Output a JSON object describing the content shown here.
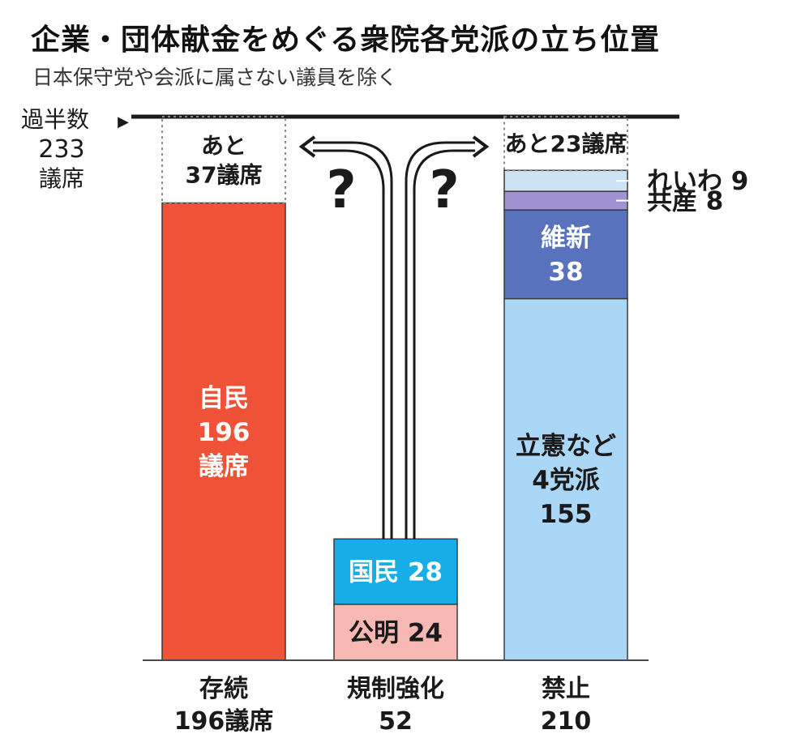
{
  "header": {
    "title": "企業・団体献金をめぐる衆院各党派の立ち位置",
    "subtitle": "日本保守党や会派に属さない議員を除く"
  },
  "chart_data": {
    "type": "bar",
    "stacked": true,
    "majority_line": {
      "label_line1": "過半数",
      "value": 233,
      "unit": "議席",
      "marker": "▶"
    },
    "ylim": [
      0,
      233
    ],
    "grid": false,
    "legend": "none",
    "question_mark": "?",
    "columns": [
      {
        "category": "存続",
        "total_label": "196議席",
        "total": 196,
        "remaining_text": [
          "あと",
          "37議席"
        ],
        "segments": [
          {
            "name": "自民",
            "value": 196,
            "label_lines": [
              "自民",
              "196",
              "議席"
            ],
            "color": "#ef5236",
            "text_color": "#ffffff",
            "label_position": "inside"
          }
        ]
      },
      {
        "category": "規制強化",
        "total_label": "52",
        "total": 52,
        "segments": [
          {
            "name": "公明",
            "value": 24,
            "label_lines": [
              "公明 24"
            ],
            "color": "#f7b8b4",
            "text_color": "#1a1a1a",
            "label_position": "inside"
          },
          {
            "name": "国民",
            "value": 28,
            "label_lines": [
              "国民 28"
            ],
            "color": "#17aee8",
            "text_color": "#ffffff",
            "label_position": "inside"
          }
        ]
      },
      {
        "category": "禁止",
        "total_label": "210",
        "total": 210,
        "remaining_text": [
          "あと23議席"
        ],
        "segments": [
          {
            "name": "立憲など4党派",
            "value": 155,
            "label_lines": [
              "立憲など",
              "4党派",
              "155"
            ],
            "color": "#a9d7f5",
            "text_color": "#1a1a1a",
            "label_position": "inside"
          },
          {
            "name": "維新",
            "value": 38,
            "label_lines": [
              "維新",
              "38"
            ],
            "color": "#5872be",
            "text_color": "#ffffff",
            "label_position": "inside"
          },
          {
            "name": "共産",
            "value": 8,
            "label_lines": [
              "共産 8"
            ],
            "color": "#9f93d2",
            "text_color": "#1a1a1a",
            "label_position": "outside"
          },
          {
            "name": "れいわ",
            "value": 9,
            "label_lines": [
              "れいわ 9"
            ],
            "color": "#cde3f4",
            "text_color": "#1a1a1a",
            "label_position": "outside"
          }
        ]
      }
    ]
  }
}
